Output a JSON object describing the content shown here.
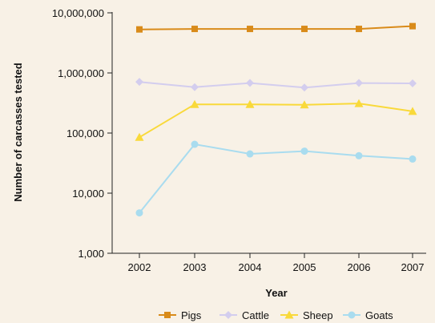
{
  "chart_data": {
    "type": "line",
    "title": "",
    "xlabel": "Year",
    "ylabel": "Number of carcasses tested",
    "x": [
      "2002",
      "2003",
      "2004",
      "2005",
      "2006",
      "2007"
    ],
    "y_scale": "log",
    "ylim": [
      1000,
      10000000
    ],
    "y_ticks": [
      1000,
      10000,
      100000,
      1000000,
      10000000
    ],
    "y_tick_labels": [
      "1,000",
      "10,000",
      "100,000",
      "1,000,000",
      "10,000,000"
    ],
    "grid": false,
    "legend_position": "bottom",
    "series": [
      {
        "name": "Pigs",
        "color": "#d98b1a",
        "marker": "square",
        "values": [
          5300000,
          5400000,
          5400000,
          5400000,
          5400000,
          6000000
        ]
      },
      {
        "name": "Cattle",
        "color": "#d3cdee",
        "marker": "diamond",
        "values": [
          710000,
          580000,
          680000,
          570000,
          680000,
          670000
        ]
      },
      {
        "name": "Sheep",
        "color": "#f9d93a",
        "marker": "triangle",
        "values": [
          85000,
          300000,
          300000,
          295000,
          310000,
          230000
        ]
      },
      {
        "name": "Goats",
        "color": "#a9dcef",
        "marker": "circle",
        "values": [
          4700,
          65000,
          45000,
          50000,
          42000,
          37000
        ]
      }
    ]
  }
}
